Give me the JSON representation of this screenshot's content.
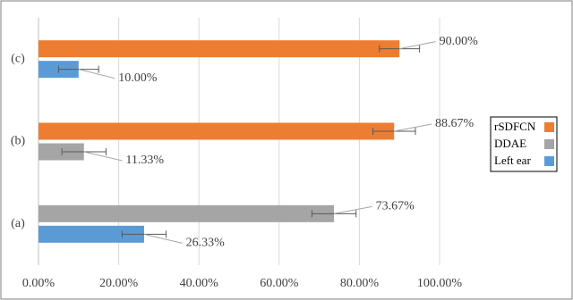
{
  "chart_data": {
    "type": "bar",
    "orientation": "horizontal",
    "categories": [
      "(a)",
      "(b)",
      "(c)"
    ],
    "series": [
      {
        "name": "rSDFCN",
        "color": "#ed7d31",
        "values": [
          null,
          88.67,
          90.0
        ],
        "errors": [
          null,
          5.3,
          5.0
        ],
        "value_labels": [
          null,
          "88.67%",
          "90.00%"
        ]
      },
      {
        "name": "DDAE",
        "color": "#a5a5a5",
        "values": [
          73.67,
          11.33,
          null
        ],
        "errors": [
          5.5,
          5.5,
          null
        ],
        "value_labels": [
          "73.67%",
          "11.33%",
          null
        ]
      },
      {
        "name": "Left ear",
        "color": "#5b9bd5",
        "values": [
          26.33,
          null,
          10.0
        ],
        "errors": [
          5.5,
          null,
          5.0
        ],
        "value_labels": [
          "26.33%",
          null,
          "10.00%"
        ]
      }
    ],
    "xlim": [
      0,
      100
    ],
    "xticks": [
      {
        "value": 0,
        "label": "0.00%"
      },
      {
        "value": 20,
        "label": "20.00%"
      },
      {
        "value": 40,
        "label": "40.00%"
      },
      {
        "value": 60,
        "label": "60.00%"
      },
      {
        "value": 80,
        "label": "80.00%"
      },
      {
        "value": 100,
        "label": "100.00%"
      }
    ],
    "grid": true,
    "legend": "right"
  }
}
